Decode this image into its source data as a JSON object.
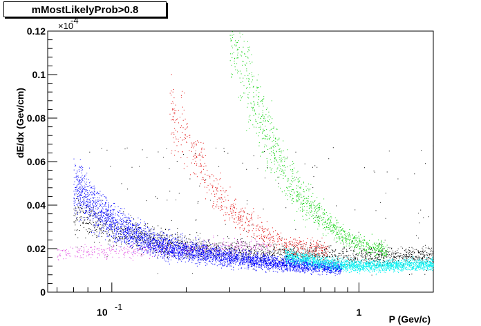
{
  "title": "mMostLikelyProb>0.8",
  "chart_data": {
    "type": "scatter",
    "xlabel": "P (Gev/c)",
    "ylabel": "dE/dx (Gev/cm)",
    "x_scale": "log",
    "xlim": [
      0.055,
      2.0
    ],
    "ylim": [
      0,
      0.12
    ],
    "y_multiplier": "×10",
    "y_multiplier_exp": "-4",
    "x_tick_labels": [
      {
        "value": 0.1,
        "base": "10",
        "exp": "-1"
      },
      {
        "value": 1,
        "base": "1",
        "exp": ""
      }
    ],
    "y_tick_labels": [
      "0",
      "0.02",
      "0.04",
      "0.06",
      "0.08",
      "0.1",
      "0.12"
    ],
    "y_tick_values": [
      0,
      0.02,
      0.04,
      0.06,
      0.08,
      0.1,
      0.12
    ],
    "grid": false,
    "colors": {
      "black": "#000000",
      "magenta": "#e040e0",
      "blue": "#0000ff",
      "cyan": "#00f0f0",
      "red": "#e00000",
      "green": "#00d000"
    },
    "series": [
      {
        "color": "#000000",
        "x_range": [
          0.07,
          2.0
        ],
        "band_points": [
          [
            0.07,
            0.036
          ],
          [
            0.1,
            0.028
          ],
          [
            0.2,
            0.021
          ],
          [
            0.5,
            0.018
          ],
          [
            1.0,
            0.017
          ],
          [
            2.0,
            0.017
          ]
        ]
      },
      {
        "color": "#e040e0",
        "x_range": [
          0.06,
          0.45
        ],
        "band_points": [
          [
            0.06,
            0.018
          ],
          [
            0.1,
            0.019
          ],
          [
            0.2,
            0.02
          ],
          [
            0.3,
            0.021
          ],
          [
            0.45,
            0.021
          ]
        ]
      },
      {
        "color": "#0000ff",
        "x_range": [
          0.07,
          0.85
        ],
        "band_points": [
          [
            0.07,
            0.05
          ],
          [
            0.08,
            0.042
          ],
          [
            0.1,
            0.032
          ],
          [
            0.15,
            0.022
          ],
          [
            0.3,
            0.016
          ],
          [
            0.5,
            0.013
          ],
          [
            0.85,
            0.011
          ]
        ]
      },
      {
        "color": "#00f0f0",
        "x_range": [
          0.5,
          2.0
        ],
        "band_points": [
          [
            0.5,
            0.017
          ],
          [
            0.8,
            0.013
          ],
          [
            1.0,
            0.012
          ],
          [
            2.0,
            0.013
          ]
        ]
      },
      {
        "color": "#e00000",
        "x_range": [
          0.17,
          0.75
        ],
        "band_points": [
          [
            0.17,
            0.085
          ],
          [
            0.2,
            0.07
          ],
          [
            0.25,
            0.05
          ],
          [
            0.3,
            0.038
          ],
          [
            0.4,
            0.028
          ],
          [
            0.5,
            0.022
          ],
          [
            0.75,
            0.019
          ]
        ]
      },
      {
        "color": "#00d000",
        "x_range": [
          0.3,
          1.3
        ],
        "band_points": [
          [
            0.3,
            0.12
          ],
          [
            0.35,
            0.1
          ],
          [
            0.4,
            0.08
          ],
          [
            0.5,
            0.055
          ],
          [
            0.6,
            0.042
          ],
          [
            0.8,
            0.029
          ],
          [
            1.0,
            0.022
          ],
          [
            1.3,
            0.019
          ]
        ]
      }
    ]
  }
}
